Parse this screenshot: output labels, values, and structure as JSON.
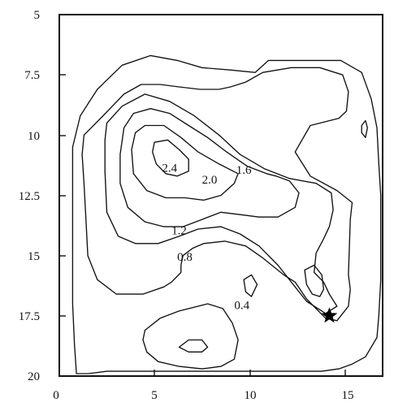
{
  "chart_data": {
    "type": "contour",
    "x_ticks": [
      "0",
      "5",
      "10",
      "15"
    ],
    "y_ticks": [
      "5",
      "7.5",
      "10",
      "12.5",
      "15",
      "17.5",
      "20"
    ],
    "xlim": [
      0,
      17
    ],
    "ylim": [
      5,
      20
    ],
    "y_axis_inverted": true,
    "contour_levels": [
      "0.4",
      "0.8",
      "1.2",
      "1.6",
      "2.0",
      "2.4"
    ],
    "contour_labels": [
      {
        "text": "2.4",
        "x": 5.8,
        "y": 11.4
      },
      {
        "text": "2.0",
        "x": 7.9,
        "y": 11.9
      },
      {
        "text": "1.6",
        "x": 9.7,
        "y": 11.5
      },
      {
        "text": "1.2",
        "x": 6.3,
        "y": 14.0
      },
      {
        "text": "0.8",
        "x": 6.6,
        "y": 15.1
      },
      {
        "text": "0.4",
        "x": 9.6,
        "y": 17.1
      }
    ],
    "contours": [
      {
        "level": "0.4",
        "points": [
          [
            0.9,
            19.9
          ],
          [
            0.8,
            18.7
          ],
          [
            0.7,
            17.0
          ],
          [
            0.7,
            15.2
          ],
          [
            0.7,
            13.5
          ],
          [
            0.7,
            12.0
          ],
          [
            0.7,
            10.5
          ],
          [
            1.1,
            9.2
          ],
          [
            2.0,
            8.1
          ],
          [
            3.3,
            7.1
          ],
          [
            4.8,
            6.7
          ],
          [
            6.2,
            6.9
          ],
          [
            7.5,
            7.2
          ],
          [
            9.0,
            7.3
          ],
          [
            10.3,
            7.4
          ],
          [
            11.0,
            6.9
          ],
          [
            11.7,
            6.9
          ],
          [
            12.8,
            6.9
          ],
          [
            14.8,
            6.9
          ],
          [
            15.9,
            7.4
          ],
          [
            16.4,
            8.5
          ],
          [
            16.7,
            9.7
          ],
          [
            16.8,
            11.2
          ],
          [
            16.9,
            12.5
          ],
          [
            16.9,
            14.0
          ],
          [
            16.9,
            16.0
          ],
          [
            16.8,
            17.5
          ],
          [
            16.7,
            18.4
          ],
          [
            16.1,
            19.2
          ],
          [
            15.4,
            19.5
          ],
          [
            14.7,
            19.7
          ],
          [
            13.8,
            19.8
          ],
          [
            12.5,
            19.8
          ],
          [
            10.5,
            19.8
          ],
          [
            8.5,
            19.8
          ],
          [
            6.5,
            19.8
          ],
          [
            4.5,
            19.8
          ],
          [
            2.5,
            19.8
          ],
          [
            1.5,
            19.9
          ],
          [
            0.9,
            19.9
          ]
        ]
      },
      {
        "level": "0.8",
        "points": [
          [
            1.3,
            10.0
          ],
          [
            2.3,
            9.2
          ],
          [
            3.4,
            8.3
          ],
          [
            4.3,
            7.9
          ],
          [
            5.3,
            7.9
          ],
          [
            6.3,
            8.0
          ],
          [
            7.4,
            8.1
          ],
          [
            8.4,
            8.1
          ],
          [
            9.0,
            8.0
          ],
          [
            9.8,
            7.8
          ],
          [
            10.7,
            7.4
          ],
          [
            12.2,
            7.2
          ],
          [
            13.7,
            7.2
          ],
          [
            14.9,
            7.5
          ],
          [
            15.2,
            8.2
          ],
          [
            15.1,
            9.0
          ],
          [
            14.7,
            9.3
          ],
          [
            13.2,
            9.6
          ],
          [
            12.4,
            10.7
          ],
          [
            13.2,
            11.7
          ],
          [
            14.6,
            12.3
          ],
          [
            15.4,
            12.8
          ],
          [
            15.3,
            13.5
          ],
          [
            15.2,
            15.8
          ],
          [
            15.3,
            16.4
          ],
          [
            15.2,
            17.1
          ],
          [
            14.6,
            17.7
          ],
          [
            14.0,
            17.6
          ],
          [
            13.0,
            16.8
          ],
          [
            12.4,
            16.1
          ],
          [
            11.8,
            15.8
          ],
          [
            10.7,
            15.1
          ],
          [
            9.8,
            14.6
          ],
          [
            8.7,
            14.4
          ],
          [
            7.6,
            14.5
          ],
          [
            7.0,
            14.7
          ],
          [
            6.5,
            15.0
          ],
          [
            6.4,
            15.4
          ],
          [
            6.4,
            15.7
          ],
          [
            5.9,
            16.1
          ],
          [
            5.5,
            16.3
          ],
          [
            4.4,
            16.6
          ],
          [
            3.0,
            16.6
          ],
          [
            2.0,
            16.0
          ],
          [
            1.5,
            15.0
          ],
          [
            1.4,
            13.5
          ],
          [
            1.3,
            12.0
          ],
          [
            1.2,
            10.8
          ],
          [
            1.3,
            10.0
          ]
        ]
      },
      {
        "level": "1.2",
        "points": [
          [
            2.5,
            9.5
          ],
          [
            3.3,
            8.8
          ],
          [
            4.5,
            8.3
          ],
          [
            5.8,
            8.6
          ],
          [
            7.1,
            9.2
          ],
          [
            8.4,
            10.0
          ],
          [
            9.5,
            10.8
          ],
          [
            10.8,
            11.4
          ],
          [
            12.1,
            11.8
          ],
          [
            13.5,
            12.0
          ],
          [
            14.3,
            12.4
          ],
          [
            14.4,
            13.1
          ],
          [
            14.2,
            13.8
          ],
          [
            13.9,
            14.3
          ],
          [
            13.5,
            14.9
          ],
          [
            13.4,
            15.7
          ],
          [
            13.9,
            16.1
          ],
          [
            14.2,
            16.6
          ],
          [
            14.6,
            17.1
          ],
          [
            14.0,
            17.4
          ],
          [
            13.0,
            16.9
          ],
          [
            12.3,
            16.2
          ],
          [
            11.5,
            15.4
          ],
          [
            10.5,
            14.6
          ],
          [
            9.5,
            14.1
          ],
          [
            8.5,
            13.8
          ],
          [
            7.3,
            13.9
          ],
          [
            6.3,
            14.2
          ],
          [
            5.2,
            14.5
          ],
          [
            4.0,
            14.5
          ],
          [
            3.1,
            14.2
          ],
          [
            2.5,
            13.2
          ],
          [
            2.4,
            11.5
          ],
          [
            2.4,
            10.2
          ],
          [
            2.5,
            9.5
          ]
        ]
      },
      {
        "level": "1.6",
        "points": [
          [
            3.9,
            9.1
          ],
          [
            4.8,
            8.9
          ],
          [
            5.8,
            9.1
          ],
          [
            6.8,
            9.6
          ],
          [
            7.8,
            10.1
          ],
          [
            8.8,
            10.7
          ],
          [
            9.9,
            11.3
          ],
          [
            10.9,
            11.6
          ],
          [
            11.4,
            11.7
          ],
          [
            12.1,
            11.9
          ],
          [
            12.6,
            12.4
          ],
          [
            12.4,
            13.0
          ],
          [
            11.5,
            13.4
          ],
          [
            10.5,
            13.4
          ],
          [
            9.5,
            13.3
          ],
          [
            8.5,
            13.2
          ],
          [
            7.5,
            13.5
          ],
          [
            6.5,
            13.8
          ],
          [
            5.5,
            13.8
          ],
          [
            4.5,
            13.6
          ],
          [
            3.6,
            13.0
          ],
          [
            3.2,
            12.0
          ],
          [
            3.2,
            10.8
          ],
          [
            3.4,
            9.7
          ],
          [
            3.9,
            9.1
          ]
        ]
      },
      {
        "level": "2.0",
        "points": [
          [
            4.5,
            9.6
          ],
          [
            5.5,
            9.6
          ],
          [
            6.4,
            10.1
          ],
          [
            7.3,
            10.7
          ],
          [
            8.4,
            11.2
          ],
          [
            9.4,
            11.6
          ],
          [
            9.2,
            12.0
          ],
          [
            8.5,
            12.5
          ],
          [
            7.6,
            12.7
          ],
          [
            6.6,
            12.6
          ],
          [
            5.6,
            12.6
          ],
          [
            4.6,
            12.3
          ],
          [
            3.9,
            11.6
          ],
          [
            3.8,
            10.6
          ],
          [
            4.0,
            9.9
          ],
          [
            4.5,
            9.6
          ]
        ]
      },
      {
        "level": "2.4",
        "points": [
          [
            5.0,
            10.3
          ],
          [
            5.7,
            10.2
          ],
          [
            6.3,
            10.6
          ],
          [
            6.8,
            11.0
          ],
          [
            6.8,
            11.5
          ],
          [
            6.2,
            11.7
          ],
          [
            5.6,
            11.6
          ],
          [
            5.1,
            11.2
          ],
          [
            4.9,
            10.7
          ],
          [
            5.0,
            10.3
          ]
        ]
      },
      {
        "level": "small_peak",
        "points": [
          [
            12.9,
            15.6
          ],
          [
            13.4,
            15.4
          ],
          [
            13.8,
            15.8
          ],
          [
            13.9,
            16.4
          ],
          [
            13.7,
            16.7
          ],
          [
            13.3,
            16.6
          ],
          [
            13.0,
            16.2
          ],
          [
            12.9,
            15.6
          ]
        ]
      },
      {
        "level": "0.4_bottom",
        "points": [
          [
            4.5,
            18.1
          ],
          [
            5.3,
            17.6
          ],
          [
            6.3,
            17.3
          ],
          [
            7.8,
            17.0
          ],
          [
            8.6,
            17.2
          ],
          [
            9.1,
            17.8
          ],
          [
            9.4,
            18.5
          ],
          [
            9.2,
            19.3
          ],
          [
            8.5,
            19.6
          ],
          [
            7.5,
            19.7
          ],
          [
            6.3,
            19.6
          ],
          [
            5.2,
            19.4
          ],
          [
            4.6,
            19.0
          ],
          [
            4.4,
            18.5
          ],
          [
            4.5,
            18.1
          ]
        ]
      },
      {
        "level": "bottom_inner",
        "points": [
          [
            6.3,
            18.8
          ],
          [
            6.8,
            18.5
          ],
          [
            7.5,
            18.5
          ],
          [
            7.8,
            18.8
          ],
          [
            7.5,
            19.0
          ],
          [
            6.8,
            19.0
          ],
          [
            6.3,
            18.8
          ]
        ]
      },
      {
        "level": "right_small",
        "points": [
          [
            15.9,
            9.6
          ],
          [
            16.1,
            9.4
          ],
          [
            16.2,
            9.7
          ],
          [
            16.1,
            10.1
          ],
          [
            15.9,
            9.9
          ],
          [
            15.9,
            9.6
          ]
        ]
      },
      {
        "level": "mid_small",
        "points": [
          [
            9.7,
            16.0
          ],
          [
            10.1,
            15.8
          ],
          [
            10.4,
            16.2
          ],
          [
            10.1,
            16.7
          ],
          [
            9.8,
            16.5
          ],
          [
            9.7,
            16.0
          ]
        ]
      }
    ],
    "marker": {
      "type": "star",
      "x": 14.2,
      "y": 17.5
    },
    "title": "",
    "xlabel": "",
    "ylabel": ""
  }
}
